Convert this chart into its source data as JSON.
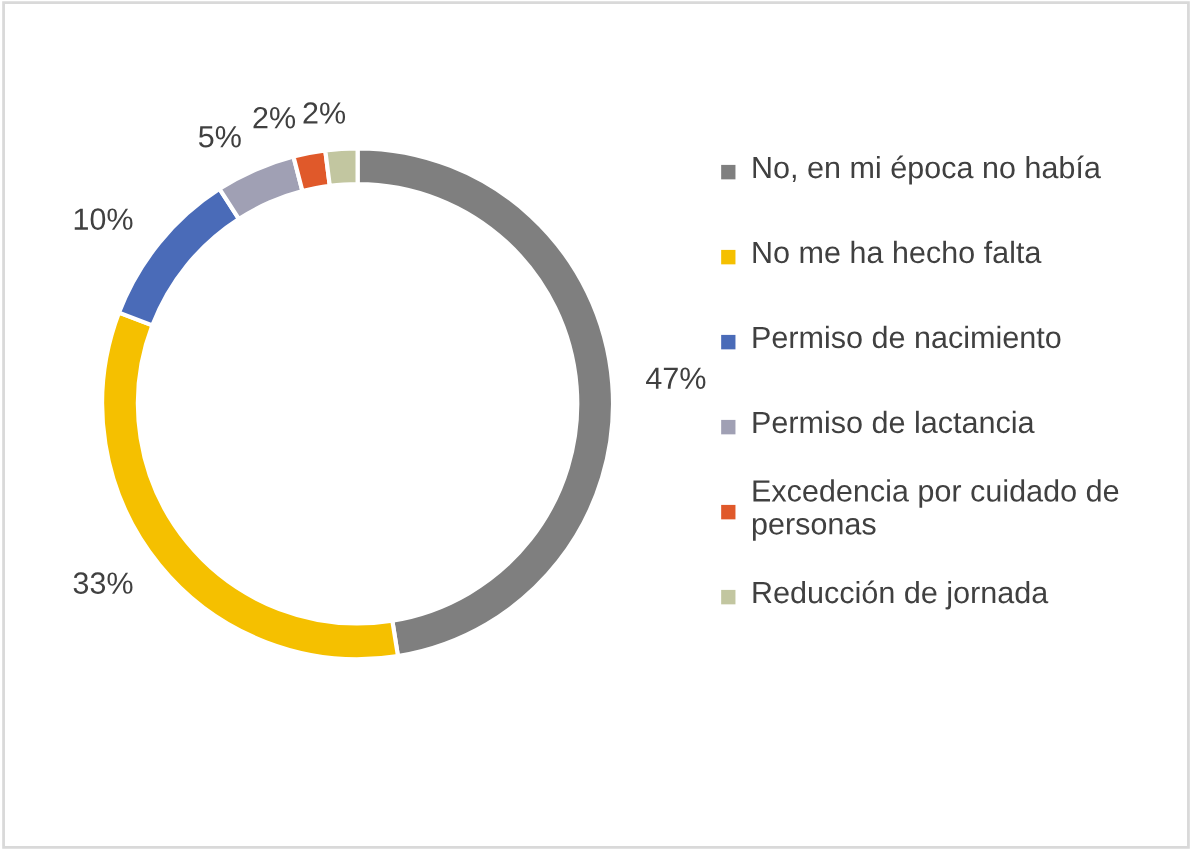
{
  "chart_data": {
    "type": "donut",
    "categories": [
      "No, en mi época no había",
      "No me ha hecho falta",
      "Permiso de nacimiento",
      "Permiso de lactancia",
      "Excedencia por cuidado de personas",
      "Reducción de jornada"
    ],
    "values": [
      47,
      33,
      10,
      5,
      2,
      2
    ],
    "value_labels": [
      "47%",
      "33%",
      "10%",
      "5%",
      "2%",
      "2%"
    ],
    "colors": [
      "#7f7f7f",
      "#f5c000",
      "#4a6bb8",
      "#a0a0b4",
      "#e0592a",
      "#c2c6a0"
    ],
    "legend": "right"
  }
}
